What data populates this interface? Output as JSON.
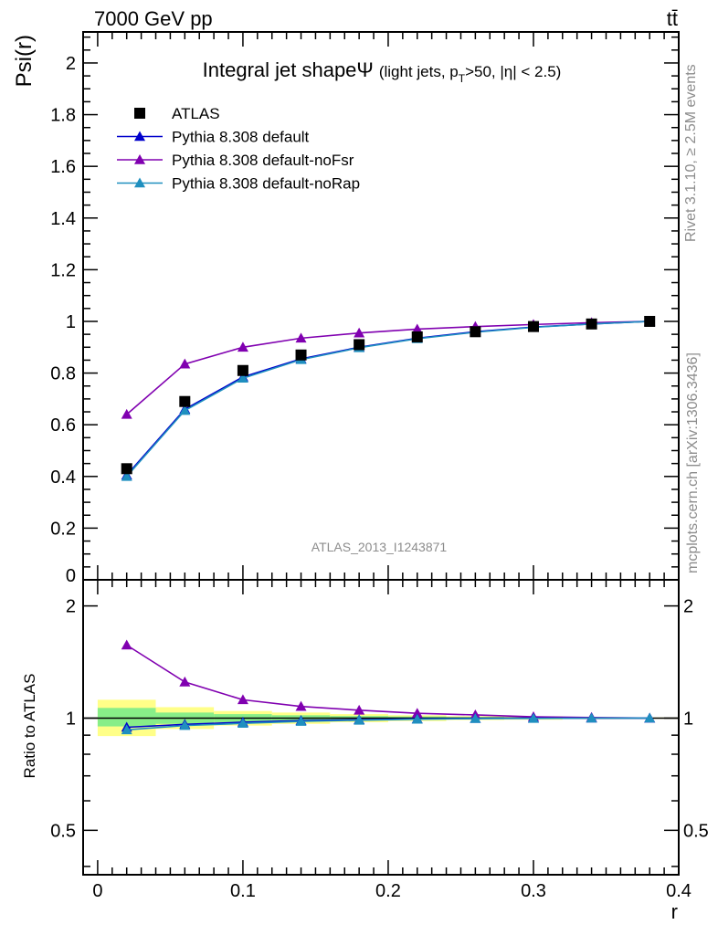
{
  "header": {
    "energy_label": "7000 GeV pp",
    "process_label": "tt̄"
  },
  "side_labels": {
    "rivet": "Rivet 3.1.10, ≥ 2.5M events",
    "mcplots": "mcplots.cern.ch [arXiv:1306.3436]"
  },
  "chart_data": [
    {
      "panel": "main",
      "type": "line",
      "title": "Integral jet shape",
      "title_symbol": "Ψ",
      "subtitle_parts": [
        "(light jets, p",
        "T",
        ">50, |η| < 2.5)"
      ],
      "ylabel": "Psi(r)",
      "xlim": [
        -0.01,
        0.4
      ],
      "ylim": [
        0,
        2.12
      ],
      "yticks": [
        0.2,
        0.4,
        0.6,
        0.8,
        1,
        1.2,
        1.4,
        1.6,
        1.8,
        2
      ],
      "ytick_labels": [
        "0.2",
        "0.4",
        "0.6",
        "0.8",
        "1",
        "1.2",
        "1.4",
        "1.6",
        "1.8",
        "2"
      ],
      "y_zero_label": "0",
      "watermark": "ATLAS_2013_I1243871",
      "legend_position": "top-left",
      "x": [
        0.02,
        0.06,
        0.1,
        0.14,
        0.18,
        0.22,
        0.26,
        0.3,
        0.34,
        0.38
      ],
      "series": [
        {
          "name": "ATLAS",
          "marker": "square",
          "color": "#000000",
          "values": [
            0.43,
            0.69,
            0.81,
            0.87,
            0.91,
            0.94,
            0.96,
            0.98,
            0.99,
            1.0
          ]
        },
        {
          "name": "Pythia 8.308 default",
          "marker": "triangle",
          "color": "#0000cc",
          "values": [
            0.405,
            0.66,
            0.785,
            0.855,
            0.9,
            0.935,
            0.96,
            0.978,
            0.99,
            1.0
          ]
        },
        {
          "name": "Pythia 8.308 default-noFsr",
          "marker": "triangle",
          "color": "#8000b0",
          "values": [
            0.64,
            0.835,
            0.9,
            0.935,
            0.955,
            0.97,
            0.98,
            0.988,
            0.995,
            1.0
          ]
        },
        {
          "name": "Pythia 8.308 default-noRap",
          "marker": "triangle",
          "color": "#1f8fbf",
          "values": [
            0.4,
            0.655,
            0.78,
            0.852,
            0.898,
            0.933,
            0.958,
            0.977,
            0.99,
            1.0
          ]
        }
      ]
    },
    {
      "panel": "ratio",
      "type": "line",
      "ylabel": "Ratio to ATLAS",
      "xlabel": "r",
      "xlim": [
        -0.01,
        0.4
      ],
      "ylim": [
        0.38,
        2.35
      ],
      "yticks": [
        0.5,
        1,
        2
      ],
      "ytick_labels": [
        "0.5",
        "1",
        "2"
      ],
      "xticks": [
        0,
        0.1,
        0.2,
        0.3,
        0.4
      ],
      "xtick_labels": [
        "0",
        "0.1",
        "0.2",
        "0.3",
        "0.4"
      ],
      "x": [
        0.02,
        0.06,
        0.1,
        0.14,
        0.18,
        0.22,
        0.26,
        0.3,
        0.34,
        0.38
      ],
      "bands": {
        "bins": [
          [
            0,
            0.04
          ],
          [
            0.04,
            0.08
          ],
          [
            0.08,
            0.12
          ],
          [
            0.12,
            0.16
          ],
          [
            0.16,
            0.2
          ],
          [
            0.2,
            0.24
          ],
          [
            0.24,
            0.28
          ],
          [
            0.28,
            0.32
          ],
          [
            0.32,
            0.36
          ],
          [
            0.36,
            0.4
          ]
        ],
        "outer": [
          [
            0.895,
            1.12
          ],
          [
            0.935,
            1.07
          ],
          [
            0.955,
            1.045
          ],
          [
            0.965,
            1.035
          ],
          [
            0.975,
            1.025
          ],
          [
            0.982,
            1.018
          ],
          [
            0.988,
            1.012
          ],
          [
            0.99,
            1.01
          ],
          [
            0.994,
            1.006
          ],
          [
            0.996,
            1.004
          ]
        ],
        "inner": [
          [
            0.95,
            1.065
          ],
          [
            0.965,
            1.035
          ],
          [
            0.975,
            1.025
          ],
          [
            0.982,
            1.018
          ],
          [
            0.987,
            1.013
          ],
          [
            0.99,
            1.01
          ],
          [
            0.993,
            1.007
          ],
          [
            0.995,
            1.005
          ],
          [
            0.997,
            1.003
          ],
          [
            0.998,
            1.002
          ]
        ],
        "outer_color": "#ffff88",
        "inner_color": "#88ee88"
      },
      "series": [
        {
          "name": "Pythia 8.308 default",
          "marker": "triangle",
          "color": "#0000cc",
          "values": [
            0.945,
            0.962,
            0.975,
            0.985,
            0.99,
            0.995,
            0.998,
            1.0,
            1.0,
            1.0
          ]
        },
        {
          "name": "Pythia 8.308 default-noFsr",
          "marker": "triangle",
          "color": "#8000b0",
          "values": [
            1.57,
            1.25,
            1.12,
            1.075,
            1.05,
            1.03,
            1.02,
            1.008,
            1.004,
            1.0
          ]
        },
        {
          "name": "Pythia 8.308 default-noRap",
          "marker": "triangle",
          "color": "#1f8fbf",
          "values": [
            0.93,
            0.955,
            0.968,
            0.98,
            0.987,
            0.993,
            0.997,
            0.998,
            1.0,
            1.0
          ]
        }
      ]
    }
  ]
}
